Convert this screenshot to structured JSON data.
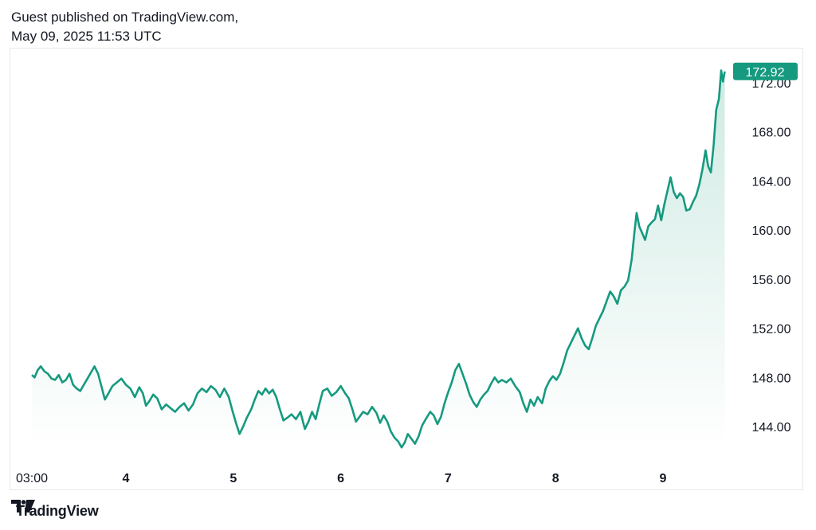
{
  "header": {
    "line1": "Guest published on TradingView.com,",
    "line2": "May 09, 2025 11:53 UTC"
  },
  "footer": {
    "brand": "TradingView",
    "logo_icon": "tradingview-logo-icon"
  },
  "colors": {
    "line": "#159a7f",
    "fill_top": "#cfeae3",
    "fill_bottom": "#ffffff",
    "badge": "#159a7f",
    "axis_text": "#131722"
  },
  "chart_data": {
    "type": "area",
    "title": "",
    "xlabel": "",
    "ylabel": "",
    "x_ticks": [
      "03:00",
      "4",
      "5",
      "6",
      "7",
      "8",
      "9"
    ],
    "x_tick_positions": [
      3,
      24,
      48,
      72,
      96,
      120,
      144
    ],
    "y_ticks": [
      "144.00",
      "148.00",
      "152.00",
      "156.00",
      "160.00",
      "164.00",
      "168.00",
      "172.00"
    ],
    "ylim": [
      142.5,
      174.2
    ],
    "xlim": [
      3,
      163
    ],
    "last_price": "172.92",
    "grid": false,
    "series": [
      {
        "values": [
          [
            3.0,
            148.2
          ],
          [
            3.6,
            148.0
          ],
          [
            4.3,
            148.6
          ],
          [
            5.0,
            148.9
          ],
          [
            5.8,
            148.5
          ],
          [
            6.6,
            148.3
          ],
          [
            7.4,
            147.9
          ],
          [
            8.2,
            147.8
          ],
          [
            9.0,
            148.2
          ],
          [
            9.8,
            147.6
          ],
          [
            10.6,
            147.8
          ],
          [
            11.4,
            148.3
          ],
          [
            12.2,
            147.4
          ],
          [
            13.0,
            147.1
          ],
          [
            13.8,
            146.9
          ],
          [
            14.6,
            147.4
          ],
          [
            15.4,
            147.9
          ],
          [
            16.2,
            148.4
          ],
          [
            17.0,
            148.9
          ],
          [
            17.8,
            148.3
          ],
          [
            18.6,
            147.2
          ],
          [
            19.3,
            146.2
          ],
          [
            20.1,
            146.7
          ],
          [
            21.0,
            147.3
          ],
          [
            22.0,
            147.6
          ],
          [
            23.0,
            147.9
          ],
          [
            24.0,
            147.4
          ],
          [
            25.0,
            147.1
          ],
          [
            26.0,
            146.4
          ],
          [
            27.0,
            147.2
          ],
          [
            27.8,
            146.7
          ],
          [
            28.5,
            145.7
          ],
          [
            29.3,
            146.1
          ],
          [
            30.1,
            146.6
          ],
          [
            31.0,
            146.3
          ],
          [
            32.0,
            145.4
          ],
          [
            33.0,
            145.8
          ],
          [
            34.0,
            145.5
          ],
          [
            35.0,
            145.2
          ],
          [
            36.0,
            145.6
          ],
          [
            37.0,
            145.9
          ],
          [
            38.0,
            145.3
          ],
          [
            39.0,
            145.8
          ],
          [
            40.0,
            146.7
          ],
          [
            41.0,
            147.1
          ],
          [
            42.0,
            146.8
          ],
          [
            43.0,
            147.3
          ],
          [
            44.0,
            147.0
          ],
          [
            45.0,
            146.4
          ],
          [
            46.0,
            147.1
          ],
          [
            47.0,
            146.4
          ],
          [
            47.8,
            145.3
          ],
          [
            48.6,
            144.3
          ],
          [
            49.4,
            143.4
          ],
          [
            50.2,
            144.0
          ],
          [
            51.0,
            144.7
          ],
          [
            52.0,
            145.4
          ],
          [
            52.8,
            146.2
          ],
          [
            53.6,
            146.9
          ],
          [
            54.4,
            146.6
          ],
          [
            55.2,
            147.1
          ],
          [
            56.0,
            146.7
          ],
          [
            56.8,
            147.0
          ],
          [
            57.6,
            146.4
          ],
          [
            58.4,
            145.4
          ],
          [
            59.2,
            144.5
          ],
          [
            60.0,
            144.7
          ],
          [
            61.0,
            145.0
          ],
          [
            62.0,
            144.6
          ],
          [
            63.0,
            145.2
          ],
          [
            64.0,
            143.8
          ],
          [
            64.8,
            144.4
          ],
          [
            65.6,
            145.2
          ],
          [
            66.4,
            144.6
          ],
          [
            67.2,
            145.8
          ],
          [
            68.0,
            146.9
          ],
          [
            69.0,
            147.1
          ],
          [
            70.0,
            146.5
          ],
          [
            71.0,
            146.8
          ],
          [
            72.0,
            147.3
          ],
          [
            73.0,
            146.7
          ],
          [
            73.8,
            146.3
          ],
          [
            74.6,
            145.4
          ],
          [
            75.4,
            144.4
          ],
          [
            76.2,
            144.8
          ],
          [
            77.0,
            145.2
          ],
          [
            78.0,
            145.0
          ],
          [
            79.0,
            145.6
          ],
          [
            80.0,
            145.1
          ],
          [
            80.8,
            144.3
          ],
          [
            81.6,
            144.9
          ],
          [
            82.4,
            144.4
          ],
          [
            83.2,
            143.6
          ],
          [
            84.0,
            143.1
          ],
          [
            84.8,
            142.8
          ],
          [
            85.6,
            142.3
          ],
          [
            86.3,
            142.7
          ],
          [
            87.0,
            143.4
          ],
          [
            87.8,
            143.0
          ],
          [
            88.6,
            142.6
          ],
          [
            89.4,
            143.2
          ],
          [
            90.2,
            144.1
          ],
          [
            91.0,
            144.6
          ],
          [
            92.0,
            145.2
          ],
          [
            92.8,
            144.9
          ],
          [
            93.6,
            144.2
          ],
          [
            94.4,
            144.8
          ],
          [
            95.2,
            145.9
          ],
          [
            96.0,
            146.8
          ],
          [
            96.8,
            147.6
          ],
          [
            97.6,
            148.6
          ],
          [
            98.4,
            149.1
          ],
          [
            99.2,
            148.3
          ],
          [
            100.0,
            147.5
          ],
          [
            100.8,
            146.6
          ],
          [
            101.6,
            146.0
          ],
          [
            102.4,
            145.6
          ],
          [
            103.2,
            146.2
          ],
          [
            104.0,
            146.6
          ],
          [
            104.8,
            146.9
          ],
          [
            105.6,
            147.5
          ],
          [
            106.4,
            148.0
          ],
          [
            107.2,
            147.6
          ],
          [
            108.0,
            147.8
          ],
          [
            109.0,
            147.6
          ],
          [
            110.0,
            147.9
          ],
          [
            111.0,
            147.3
          ],
          [
            112.0,
            146.8
          ],
          [
            112.8,
            145.9
          ],
          [
            113.6,
            145.2
          ],
          [
            114.4,
            146.2
          ],
          [
            115.2,
            145.7
          ],
          [
            116.0,
            146.4
          ],
          [
            117.0,
            145.9
          ],
          [
            117.8,
            147.1
          ],
          [
            118.6,
            147.7
          ],
          [
            119.4,
            148.1
          ],
          [
            120.2,
            147.8
          ],
          [
            121.0,
            148.3
          ],
          [
            121.8,
            149.2
          ],
          [
            122.6,
            150.2
          ],
          [
            123.4,
            150.8
          ],
          [
            124.2,
            151.4
          ],
          [
            125.0,
            152.0
          ],
          [
            125.8,
            151.2
          ],
          [
            126.6,
            150.6
          ],
          [
            127.4,
            150.3
          ],
          [
            128.2,
            151.2
          ],
          [
            129.0,
            152.2
          ],
          [
            129.8,
            152.8
          ],
          [
            130.6,
            153.4
          ],
          [
            131.4,
            154.2
          ],
          [
            132.2,
            155.0
          ],
          [
            133.0,
            154.6
          ],
          [
            133.8,
            154.0
          ],
          [
            134.6,
            155.1
          ],
          [
            135.4,
            155.4
          ],
          [
            136.2,
            155.9
          ],
          [
            137.0,
            157.6
          ],
          [
            137.6,
            159.8
          ],
          [
            138.1,
            161.4
          ],
          [
            138.7,
            160.3
          ],
          [
            139.3,
            159.8
          ],
          [
            140.0,
            159.2
          ],
          [
            140.7,
            160.3
          ],
          [
            141.4,
            160.6
          ],
          [
            142.2,
            160.9
          ],
          [
            142.9,
            162.0
          ],
          [
            143.6,
            160.8
          ],
          [
            144.3,
            162.1
          ],
          [
            145.0,
            163.2
          ],
          [
            145.7,
            164.3
          ],
          [
            146.4,
            163.1
          ],
          [
            147.1,
            162.6
          ],
          [
            147.8,
            163.0
          ],
          [
            148.5,
            162.7
          ],
          [
            149.2,
            161.6
          ],
          [
            150.0,
            161.7
          ],
          [
            150.7,
            162.3
          ],
          [
            151.4,
            162.8
          ],
          [
            152.1,
            163.7
          ],
          [
            152.8,
            164.9
          ],
          [
            153.5,
            166.5
          ],
          [
            154.1,
            165.2
          ],
          [
            154.7,
            164.7
          ],
          [
            155.3,
            166.9
          ],
          [
            155.9,
            169.8
          ],
          [
            156.5,
            170.7
          ],
          [
            157.0,
            173.0
          ],
          [
            157.4,
            172.1
          ],
          [
            157.8,
            172.92
          ]
        ]
      }
    ]
  }
}
